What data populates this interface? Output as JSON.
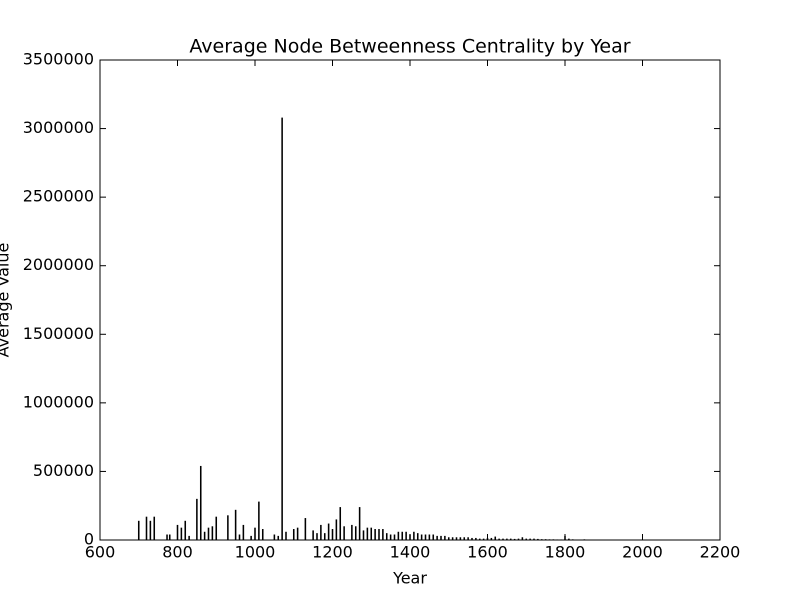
{
  "chart_data": {
    "type": "bar",
    "title": "Average Node Betweenness Centrality by Year",
    "x_label": "Year",
    "y_label": "Average Value",
    "color": "#000000",
    "grid": false,
    "x": [
      700,
      720,
      730,
      740,
      773,
      780,
      800,
      810,
      820,
      830,
      850,
      860,
      870,
      880,
      890,
      900,
      930,
      950,
      960,
      970,
      990,
      1000,
      1010,
      1020,
      1050,
      1060,
      1070,
      1080,
      1100,
      1110,
      1130,
      1150,
      1160,
      1170,
      1180,
      1190,
      1200,
      1210,
      1220,
      1230,
      1250,
      1260,
      1270,
      1280,
      1290,
      1300,
      1310,
      1320,
      1330,
      1340,
      1350,
      1360,
      1370,
      1380,
      1390,
      1400,
      1410,
      1420,
      1430,
      1440,
      1450,
      1460,
      1470,
      1480,
      1490,
      1500,
      1510,
      1520,
      1530,
      1540,
      1550,
      1560,
      1570,
      1580,
      1590,
      1600,
      1610,
      1620,
      1630,
      1640,
      1650,
      1660,
      1670,
      1680,
      1690,
      1700,
      1710,
      1720,
      1730,
      1740,
      1750,
      1760,
      1770,
      1780,
      1790,
      1800,
      1810,
      1820,
      1830,
      1850
    ],
    "values": [
      140000,
      170000,
      140000,
      170000,
      40000,
      40000,
      110000,
      90000,
      140000,
      30000,
      300000,
      540000,
      60000,
      90000,
      100000,
      170000,
      180000,
      220000,
      40000,
      110000,
      30000,
      90000,
      280000,
      80000,
      40000,
      30000,
      3080000,
      60000,
      80000,
      90000,
      160000,
      70000,
      50000,
      110000,
      50000,
      120000,
      80000,
      150000,
      240000,
      100000,
      110000,
      100000,
      240000,
      70000,
      90000,
      90000,
      80000,
      80000,
      80000,
      50000,
      40000,
      40000,
      60000,
      60000,
      60000,
      40000,
      60000,
      50000,
      40000,
      40000,
      40000,
      40000,
      30000,
      30000,
      30000,
      20000,
      20000,
      20000,
      20000,
      20000,
      20000,
      15000,
      15000,
      10000,
      10000,
      15000,
      15000,
      25000,
      10000,
      10000,
      10000,
      10000,
      8000,
      10000,
      20000,
      10000,
      10000,
      10000,
      8000,
      6000,
      6000,
      5000,
      5000,
      4000,
      4000,
      30000,
      10000,
      5000,
      3000,
      5000
    ],
    "xlim": [
      600,
      2200
    ],
    "xticks": [
      600,
      800,
      1000,
      1200,
      1400,
      1600,
      1800,
      2000,
      2200
    ],
    "ylim": [
      0,
      3500000
    ],
    "yticks": [
      0,
      500000,
      1000000,
      1500000,
      2000000,
      2500000,
      3000000,
      3500000
    ]
  }
}
